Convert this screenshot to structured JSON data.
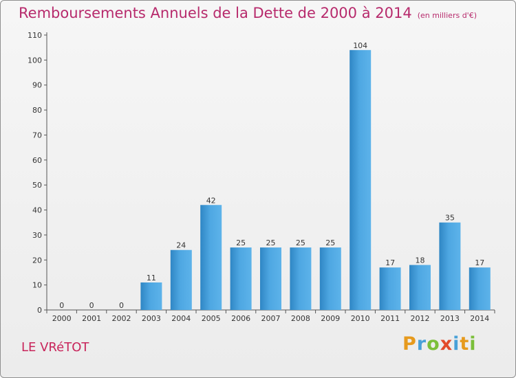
{
  "header": {
    "title": "Remboursements Annuels de la Dette de 2000 à 2014",
    "subtitle": "(en milliers d'€)"
  },
  "commune": "LE VRéTOT",
  "logo": {
    "letters": [
      "P",
      "r",
      "o",
      "x",
      "i",
      "t",
      "i"
    ]
  },
  "colors": {
    "title": "#b72a6c",
    "bar_light": "#5db3ea",
    "bar_dark": "#2f86c4",
    "axis": "#555555"
  },
  "chart_data": {
    "type": "bar",
    "title": "Remboursements Annuels de la Dette de 2000 à 2014",
    "categories": [
      "2000",
      "2001",
      "2002",
      "2003",
      "2004",
      "2005",
      "2006",
      "2007",
      "2008",
      "2009",
      "2010",
      "2011",
      "2012",
      "2013",
      "2014"
    ],
    "values": [
      0,
      0,
      0,
      11,
      24,
      42,
      25,
      25,
      25,
      25,
      104,
      17,
      18,
      35,
      17
    ],
    "ylim": [
      0,
      110
    ],
    "yticks": [
      0,
      10,
      20,
      30,
      40,
      50,
      60,
      70,
      80,
      90,
      100,
      110
    ],
    "grid": false,
    "legend": "none"
  }
}
